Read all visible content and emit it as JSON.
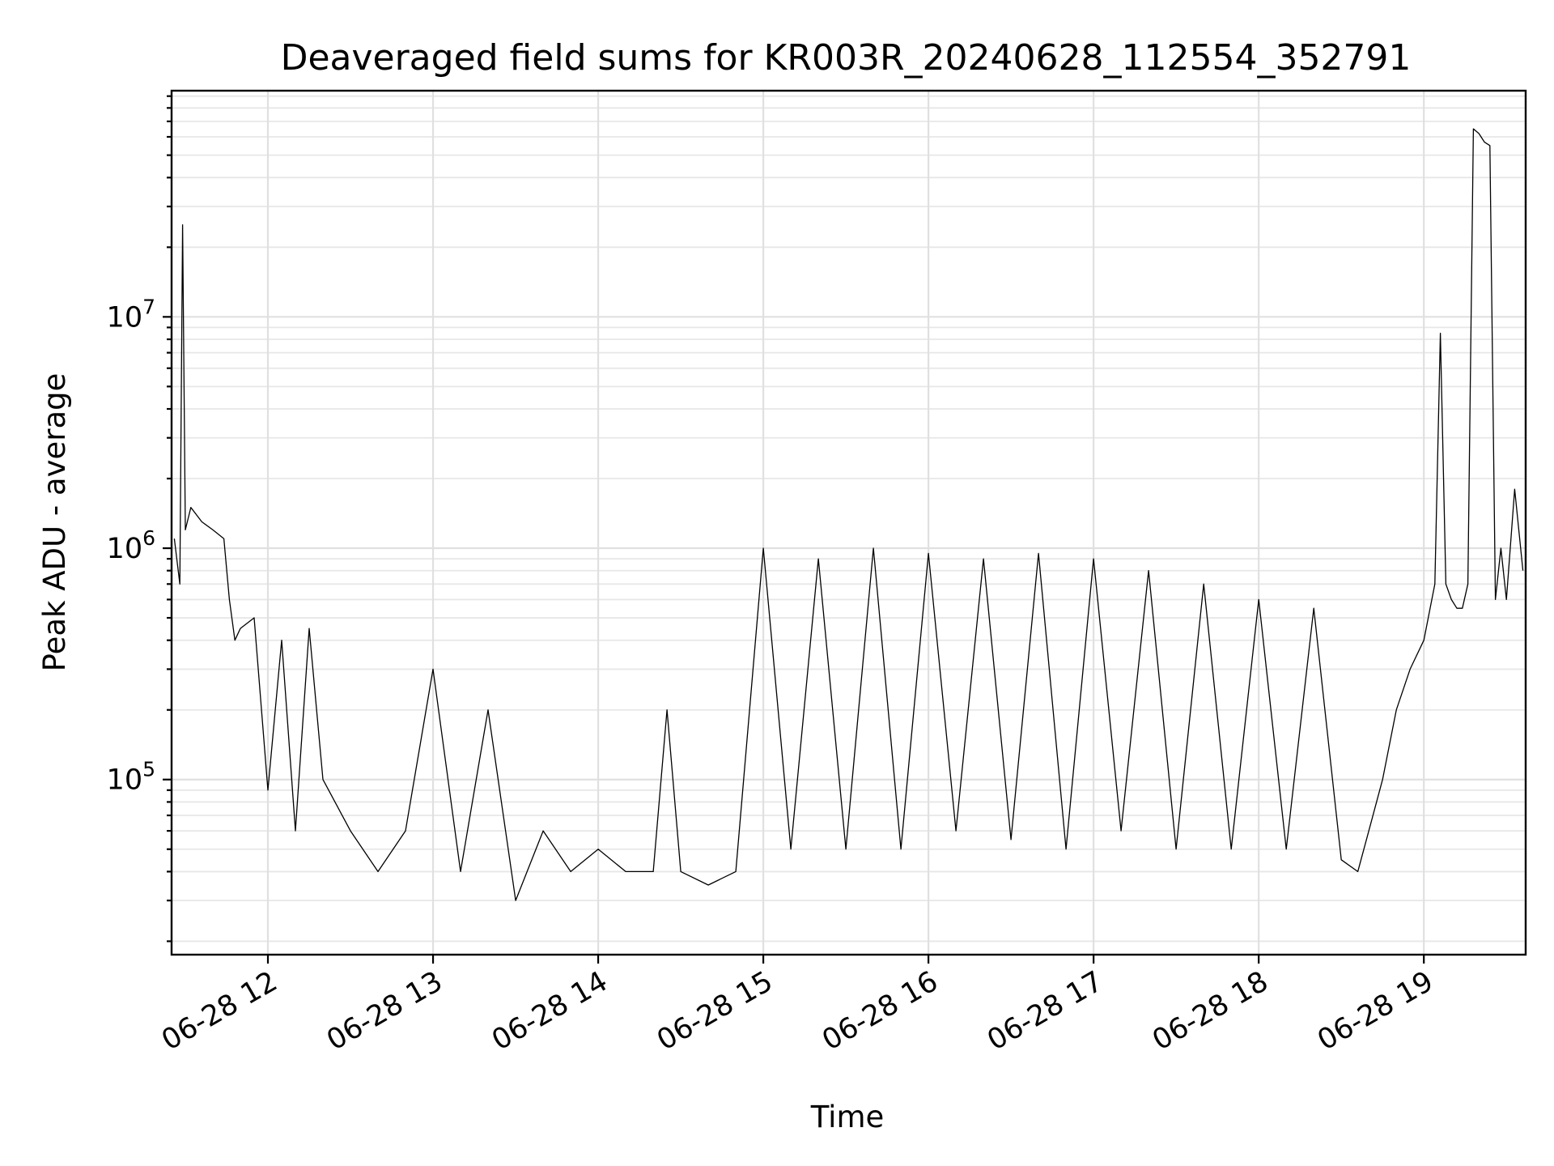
{
  "chart_data": {
    "type": "line",
    "title": "Deaveraged field sums for KR003R_20240628_112554_352791",
    "xlabel": "Time",
    "ylabel": "Peak ADU - average",
    "x_tick_labels": [
      "06-28 12",
      "06-28 13",
      "06-28 14",
      "06-28 15",
      "06-28 16",
      "06-28 17",
      "06-28 18",
      "06-28 19"
    ],
    "y_tick_labels": [
      {
        "base": "10",
        "exp": "5",
        "value": 100000
      },
      {
        "base": "10",
        "exp": "6",
        "value": 1000000
      },
      {
        "base": "10",
        "exp": "7",
        "value": 10000000
      }
    ],
    "yscale": "log",
    "xlim": [
      "2024-06-28 11:25",
      "2024-06-28 19:37"
    ],
    "ylim": [
      17500,
      95000000
    ],
    "grid": true,
    "series": [
      {
        "color": "#000000",
        "x": [
          "2024-06-28 11:26",
          "2024-06-28 11:28",
          "2024-06-28 11:29",
          "2024-06-28 11:30",
          "2024-06-28 11:32",
          "2024-06-28 11:36",
          "2024-06-28 11:40",
          "2024-06-28 11:44",
          "2024-06-28 11:46",
          "2024-06-28 11:48",
          "2024-06-28 11:50",
          "2024-06-28 11:55",
          "2024-06-28 12:00",
          "2024-06-28 12:05",
          "2024-06-28 12:10",
          "2024-06-28 12:15",
          "2024-06-28 12:20",
          "2024-06-28 12:30",
          "2024-06-28 12:40",
          "2024-06-28 12:50",
          "2024-06-28 13:00",
          "2024-06-28 13:10",
          "2024-06-28 13:20",
          "2024-06-28 13:30",
          "2024-06-28 13:40",
          "2024-06-28 13:50",
          "2024-06-28 14:00",
          "2024-06-28 14:10",
          "2024-06-28 14:20",
          "2024-06-28 14:25",
          "2024-06-28 14:30",
          "2024-06-28 14:40",
          "2024-06-28 14:50",
          "2024-06-28 15:00",
          "2024-06-28 15:10",
          "2024-06-28 15:20",
          "2024-06-28 15:30",
          "2024-06-28 15:40",
          "2024-06-28 15:50",
          "2024-06-28 16:00",
          "2024-06-28 16:10",
          "2024-06-28 16:20",
          "2024-06-28 16:30",
          "2024-06-28 16:40",
          "2024-06-28 16:50",
          "2024-06-28 17:00",
          "2024-06-28 17:10",
          "2024-06-28 17:20",
          "2024-06-28 17:30",
          "2024-06-28 17:40",
          "2024-06-28 17:50",
          "2024-06-28 18:00",
          "2024-06-28 18:10",
          "2024-06-28 18:20",
          "2024-06-28 18:30",
          "2024-06-28 18:36",
          "2024-06-28 18:40",
          "2024-06-28 18:45",
          "2024-06-28 18:50",
          "2024-06-28 18:55",
          "2024-06-28 19:00",
          "2024-06-28 19:04",
          "2024-06-28 19:06",
          "2024-06-28 19:08",
          "2024-06-28 19:10",
          "2024-06-28 19:12",
          "2024-06-28 19:14",
          "2024-06-28 19:16",
          "2024-06-28 19:18",
          "2024-06-28 19:20",
          "2024-06-28 19:22",
          "2024-06-28 19:24",
          "2024-06-28 19:26",
          "2024-06-28 19:28",
          "2024-06-28 19:30",
          "2024-06-28 19:33",
          "2024-06-28 19:36"
        ],
        "y": [
          1100000,
          700000,
          25000000,
          1200000,
          1500000,
          1300000,
          1200000,
          1100000,
          600000,
          400000,
          450000,
          500000,
          90000,
          400000,
          60000,
          450000,
          100000,
          60000,
          40000,
          60000,
          300000,
          40000,
          200000,
          30000,
          60000,
          40000,
          50000,
          40000,
          40000,
          200000,
          40000,
          35000,
          40000,
          1000000,
          50000,
          900000,
          50000,
          1000000,
          50000,
          950000,
          60000,
          900000,
          55000,
          950000,
          50000,
          900000,
          60000,
          800000,
          50000,
          700000,
          50000,
          600000,
          50000,
          550000,
          45000,
          40000,
          60000,
          100000,
          200000,
          300000,
          400000,
          700000,
          8500000,
          700000,
          600000,
          550000,
          550000,
          700000,
          65000000,
          62000000,
          57000000,
          55000000,
          600000,
          1000000,
          600000,
          1800000,
          800000
        ]
      }
    ]
  }
}
